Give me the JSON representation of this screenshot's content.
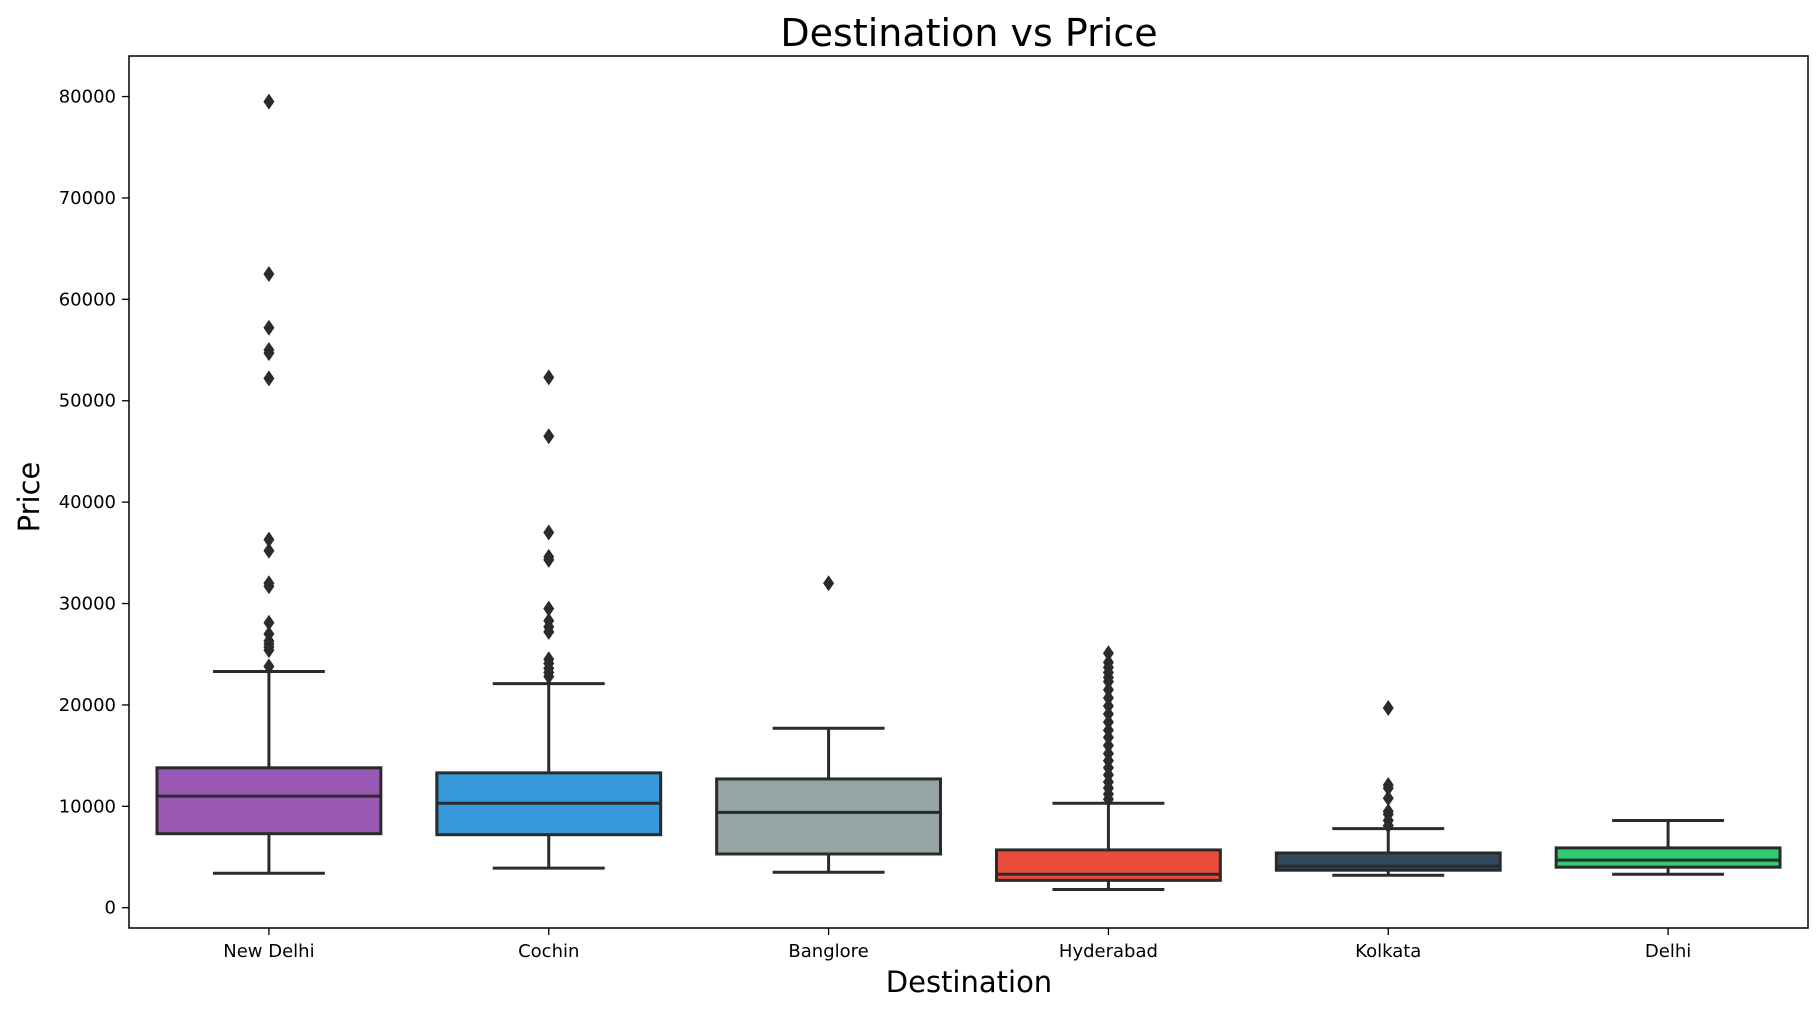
{
  "chart_data": {
    "type": "box",
    "title": "Destination vs Price",
    "xlabel": "Destination",
    "ylabel": "Price",
    "ylim": [
      -2000,
      84000
    ],
    "yticks": [
      0,
      10000,
      20000,
      30000,
      40000,
      50000,
      60000,
      70000,
      80000
    ],
    "grid": false,
    "categories": [
      "New Delhi",
      "Cochin",
      "Banglore",
      "Hyderabad",
      "Kolkata",
      "Delhi"
    ],
    "colors": [
      "#9b59b6",
      "#3498db",
      "#95a5a6",
      "#e74c3c",
      "#34495e",
      "#2ecc71"
    ],
    "boxes": [
      {
        "name": "New Delhi",
        "whisker_low": 3400,
        "q1": 7300,
        "median": 11000,
        "q3": 13800,
        "whisker_high": 23300,
        "outliers": [
          23800,
          25400,
          25700,
          26000,
          26300,
          27000,
          28100,
          31700,
          32000,
          35200,
          36300,
          52200,
          54700,
          55000,
          57200,
          62500,
          79500
        ]
      },
      {
        "name": "Cochin",
        "whisker_low": 3900,
        "q1": 7200,
        "median": 10300,
        "q3": 13300,
        "whisker_high": 22100,
        "outliers": [
          22800,
          23200,
          23600,
          24100,
          24500,
          27200,
          27700,
          28300,
          29500,
          34300,
          34600,
          37000,
          46500,
          52300
        ]
      },
      {
        "name": "Banglore",
        "whisker_low": 3500,
        "q1": 5300,
        "median": 9400,
        "q3": 12700,
        "whisker_high": 17700,
        "outliers": [
          32000
        ]
      },
      {
        "name": "Hyderabad",
        "whisker_low": 1800,
        "q1": 2700,
        "median": 3300,
        "q3": 5700,
        "whisker_high": 10300,
        "outliers": [
          10700,
          11200,
          11800,
          12400,
          13100,
          13800,
          14500,
          15200,
          16000,
          16800,
          17500,
          18300,
          19100,
          19900,
          20700,
          21500,
          22300,
          22700,
          23200,
          23700,
          24200,
          25100
        ]
      },
      {
        "name": "Kolkata",
        "whisker_low": 3200,
        "q1": 3700,
        "median": 4100,
        "q3": 5400,
        "whisker_high": 7800,
        "outliers": [
          8100,
          8600,
          9200,
          9500,
          10800,
          11800,
          12100,
          19700
        ]
      },
      {
        "name": "Delhi",
        "whisker_low": 3300,
        "q1": 4000,
        "median": 4700,
        "q3": 5900,
        "whisker_high": 8600,
        "outliers": []
      }
    ]
  }
}
